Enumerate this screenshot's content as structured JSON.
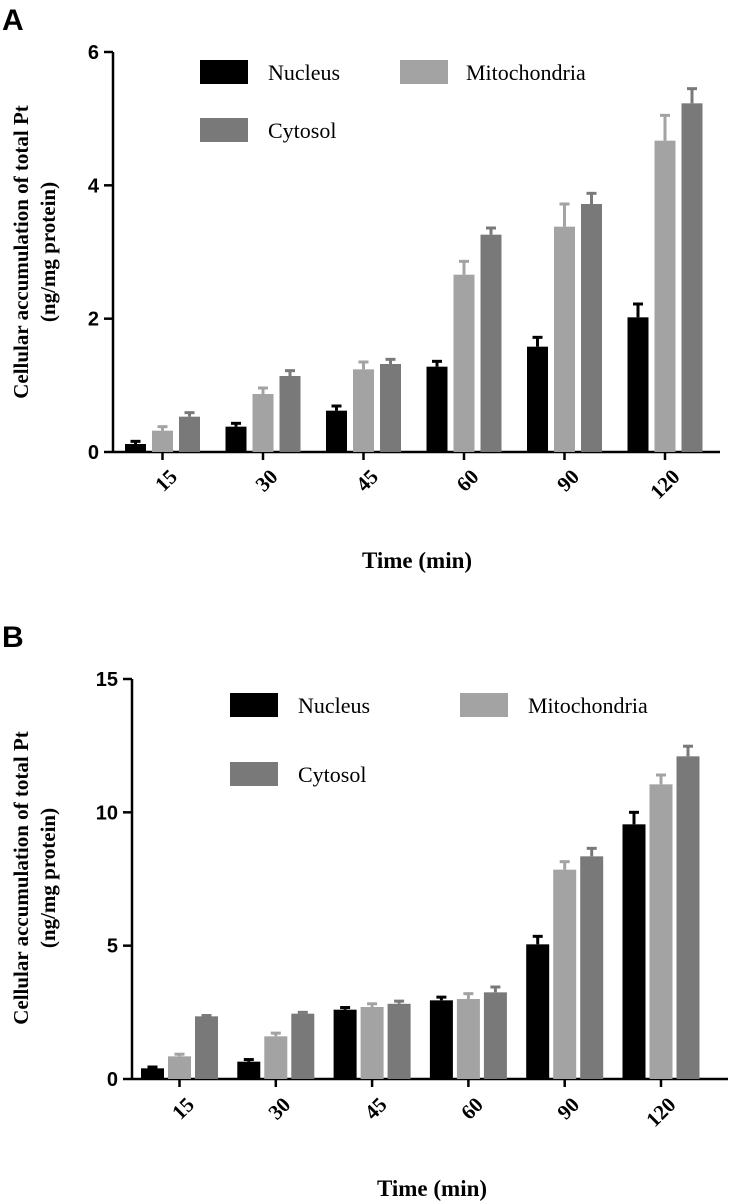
{
  "chart_data": [
    {
      "panel": "A",
      "type": "bar",
      "title": "",
      "xlabel": "Time (min)",
      "ylabel_line1": "Cellular accumulation of total Pt",
      "ylabel_line2": "(ng/mg protein)",
      "ylim": [
        0,
        6
      ],
      "yticks": [
        0,
        2,
        4,
        6
      ],
      "ytick_labels": [
        "0",
        "2",
        "4",
        "6"
      ],
      "categories": [
        "15",
        "30",
        "45",
        "60",
        "90",
        "120"
      ],
      "legend_position": "top",
      "series": [
        {
          "name": "Nucleus",
          "color": "#000000",
          "values": [
            0.12,
            0.38,
            0.62,
            1.28,
            1.58,
            2.02
          ],
          "errors": [
            0.04,
            0.05,
            0.07,
            0.08,
            0.14,
            0.2
          ]
        },
        {
          "name": "Mitochondria",
          "color": "#a3a3a3",
          "values": [
            0.32,
            0.87,
            1.24,
            2.66,
            3.38,
            4.67
          ],
          "errors": [
            0.06,
            0.09,
            0.11,
            0.2,
            0.34,
            0.38
          ]
        },
        {
          "name": "Cytosol",
          "color": "#797979",
          "values": [
            0.53,
            1.14,
            1.32,
            3.26,
            3.72,
            5.23
          ],
          "errors": [
            0.06,
            0.08,
            0.07,
            0.1,
            0.16,
            0.22
          ]
        }
      ]
    },
    {
      "panel": "B",
      "type": "bar",
      "title": "",
      "xlabel": "Time (min)",
      "ylabel_line1": "Cellular accumulation of total Pt",
      "ylabel_line2": "(ng/mg protein)",
      "ylim": [
        0,
        15
      ],
      "yticks": [
        0,
        5,
        10,
        15
      ],
      "ytick_labels": [
        "0",
        "5",
        "10",
        "15"
      ],
      "categories": [
        "15",
        "30",
        "45",
        "60",
        "90",
        "120"
      ],
      "legend_position": "top",
      "series": [
        {
          "name": "Nucleus",
          "color": "#000000",
          "values": [
            0.4,
            0.65,
            2.6,
            2.95,
            5.05,
            9.55
          ],
          "errors": [
            0.05,
            0.08,
            0.08,
            0.12,
            0.3,
            0.45
          ]
        },
        {
          "name": "Mitochondria",
          "color": "#a3a3a3",
          "values": [
            0.85,
            1.6,
            2.7,
            3.0,
            7.85,
            11.05
          ],
          "errors": [
            0.08,
            0.12,
            0.12,
            0.2,
            0.3,
            0.35
          ]
        },
        {
          "name": "Cytosol",
          "color": "#797979",
          "values": [
            2.35,
            2.45,
            2.82,
            3.25,
            8.35,
            12.1
          ],
          "errors": [
            0.03,
            0.05,
            0.1,
            0.2,
            0.3,
            0.38
          ]
        }
      ]
    }
  ]
}
